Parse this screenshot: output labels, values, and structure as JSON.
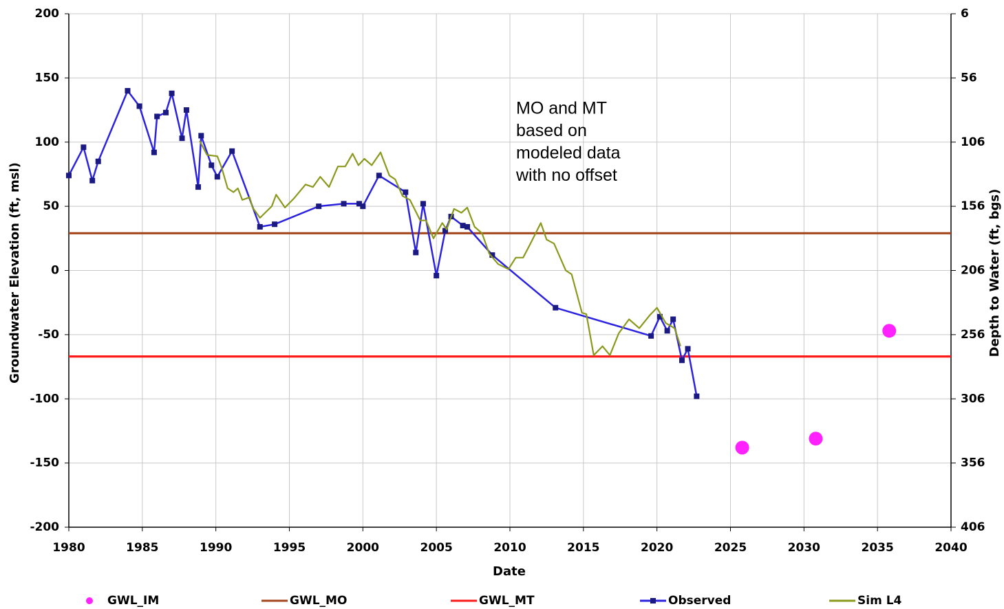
{
  "chart_data": {
    "type": "line",
    "xlabel": "Date",
    "ylabel": "Groundwater Elevation (ft, msl)",
    "y2label": "Depth to Water (ft, bgs)",
    "annotation": [
      "MO and MT",
      "based on",
      "modeled data",
      "with no offset"
    ],
    "xlim": [
      1980,
      2040
    ],
    "xticks": [
      1980,
      1985,
      1990,
      1995,
      2000,
      2005,
      2010,
      2015,
      2020,
      2025,
      2030,
      2035,
      2040
    ],
    "ylim": [
      -200,
      200
    ],
    "yticks": [
      -200,
      -150,
      -100,
      -50,
      0,
      50,
      100,
      150,
      200
    ],
    "y2lim": [
      406,
      6
    ],
    "y2ticks": [
      406,
      356,
      306,
      256,
      206,
      156,
      106,
      56,
      6
    ],
    "grid": true,
    "legend": "bottom",
    "series": [
      {
        "name": "GWL_IM",
        "color": "#ff22ff",
        "mode": "markers",
        "x": [
          2025.8,
          2030.8,
          2035.8
        ],
        "values": [
          -138,
          -131,
          -47
        ]
      },
      {
        "name": "GWL_MO",
        "color": "#a4461c",
        "mode": "lines",
        "x": [
          1980,
          2040
        ],
        "values": [
          29,
          29
        ]
      },
      {
        "name": "GWL_MT",
        "color": "#ff1a1a",
        "mode": "lines",
        "x": [
          1980,
          2040
        ],
        "values": [
          -67,
          -67
        ]
      },
      {
        "name": "Observed",
        "color": "#2b22e0",
        "marker_color": "#1b1a82",
        "mode": "lines+markers",
        "x": [
          1980.0,
          1981.0,
          1981.6,
          1982.0,
          1984.0,
          1984.8,
          1985.8,
          1986.0,
          1986.6,
          1987.0,
          1987.7,
          1988.0,
          1988.8,
          1989.0,
          1989.7,
          1990.1,
          1991.1,
          1993.0,
          1994.0,
          1997.0,
          1998.7,
          1999.75,
          2000.0,
          2001.1,
          2002.9,
          2003.6,
          2004.1,
          2005.0,
          2005.6,
          2006.0,
          2006.8,
          2007.1,
          2008.8,
          2013.1,
          2019.6,
          2020.2,
          2020.7,
          2021.1,
          2021.7,
          2022.1,
          2022.7
        ],
        "values": [
          74,
          96,
          70,
          85,
          140,
          128,
          92,
          120,
          123,
          138,
          103,
          125,
          65,
          105,
          82,
          73,
          93,
          34,
          36,
          50,
          52,
          52,
          50,
          74,
          61,
          14,
          52,
          -4,
          31,
          42,
          35,
          34,
          12,
          -29,
          -51,
          -36,
          -47,
          -38,
          -70,
          -61,
          -98
        ]
      },
      {
        "name": "Sim L4",
        "color": "#8a981c",
        "mode": "lines",
        "x": [
          1988.9,
          1989.4,
          1990.1,
          1990.4,
          1990.8,
          1991.2,
          1991.5,
          1991.8,
          1992.3,
          1992.5,
          1993.0,
          1993.8,
          1994.1,
          1994.7,
          1995.3,
          1996.1,
          1996.6,
          1997.1,
          1997.7,
          1998.3,
          1998.8,
          1999.3,
          1999.7,
          2000.1,
          2000.6,
          2001.2,
          2001.8,
          2002.2,
          2002.7,
          2003.2,
          2003.9,
          2004.3,
          2004.8,
          2005.4,
          2005.7,
          2006.2,
          2006.7,
          2007.1,
          2007.6,
          2008.1,
          2008.6,
          2009.2,
          2009.9,
          2010.4,
          2010.9,
          2011.4,
          2012.1,
          2012.5,
          2013.0,
          2013.8,
          2014.2,
          2014.9,
          2015.2,
          2015.7,
          2016.3,
          2016.8,
          2017.4,
          2018.1,
          2018.8,
          2019.5,
          2020.0,
          2020.6,
          2021.2,
          2021.6
        ],
        "values": [
          101,
          90,
          89,
          80,
          64,
          61,
          64,
          55,
          57,
          49,
          41,
          50,
          59,
          49,
          56,
          67,
          65,
          73,
          65,
          81,
          81,
          91,
          82,
          87,
          82,
          92,
          74,
          71,
          58,
          55,
          39,
          39,
          25,
          37,
          32,
          48,
          45,
          49,
          34,
          29,
          13,
          5,
          1,
          10,
          10,
          21,
          37,
          24,
          21,
          0,
          -3,
          -33,
          -34,
          -66,
          -59,
          -66,
          -49,
          -38,
          -45,
          -35,
          -29,
          -41,
          -45,
          -59
        ]
      }
    ]
  }
}
